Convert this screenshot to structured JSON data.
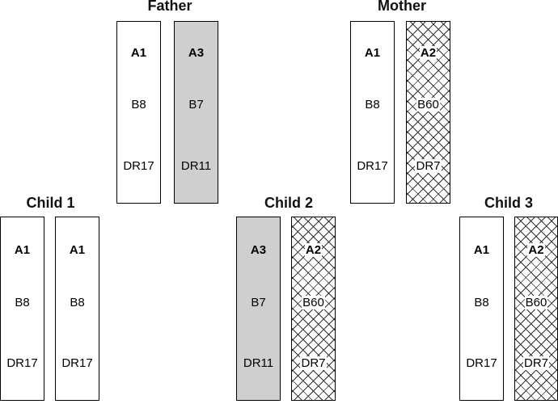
{
  "individuals": {
    "father": {
      "label": "Father",
      "haplotypes": [
        {
          "fill": "white",
          "alleles": [
            "A1",
            "B8",
            "DR17"
          ]
        },
        {
          "fill": "gray",
          "alleles": [
            "A3",
            "B7",
            "DR11"
          ]
        }
      ]
    },
    "mother": {
      "label": "Mother",
      "haplotypes": [
        {
          "fill": "white",
          "alleles": [
            "A1",
            "B8",
            "DR17"
          ]
        },
        {
          "fill": "hatch",
          "alleles": [
            "A2",
            "B60",
            "DR7"
          ]
        }
      ]
    },
    "child1": {
      "label": "Child 1",
      "haplotypes": [
        {
          "fill": "white",
          "alleles": [
            "A1",
            "B8",
            "DR17"
          ]
        },
        {
          "fill": "white",
          "alleles": [
            "A1",
            "B8",
            "DR17"
          ]
        }
      ]
    },
    "child2": {
      "label": "Child 2",
      "haplotypes": [
        {
          "fill": "gray",
          "alleles": [
            "A3",
            "B7",
            "DR11"
          ]
        },
        {
          "fill": "hatch",
          "alleles": [
            "A2",
            "B60",
            "DR7"
          ]
        }
      ]
    },
    "child3": {
      "label": "Child 3",
      "haplotypes": [
        {
          "fill": "white",
          "alleles": [
            "A1",
            "B8",
            "DR17"
          ]
        },
        {
          "fill": "hatch",
          "alleles": [
            "A2",
            "B60",
            "DR7"
          ]
        }
      ]
    }
  }
}
